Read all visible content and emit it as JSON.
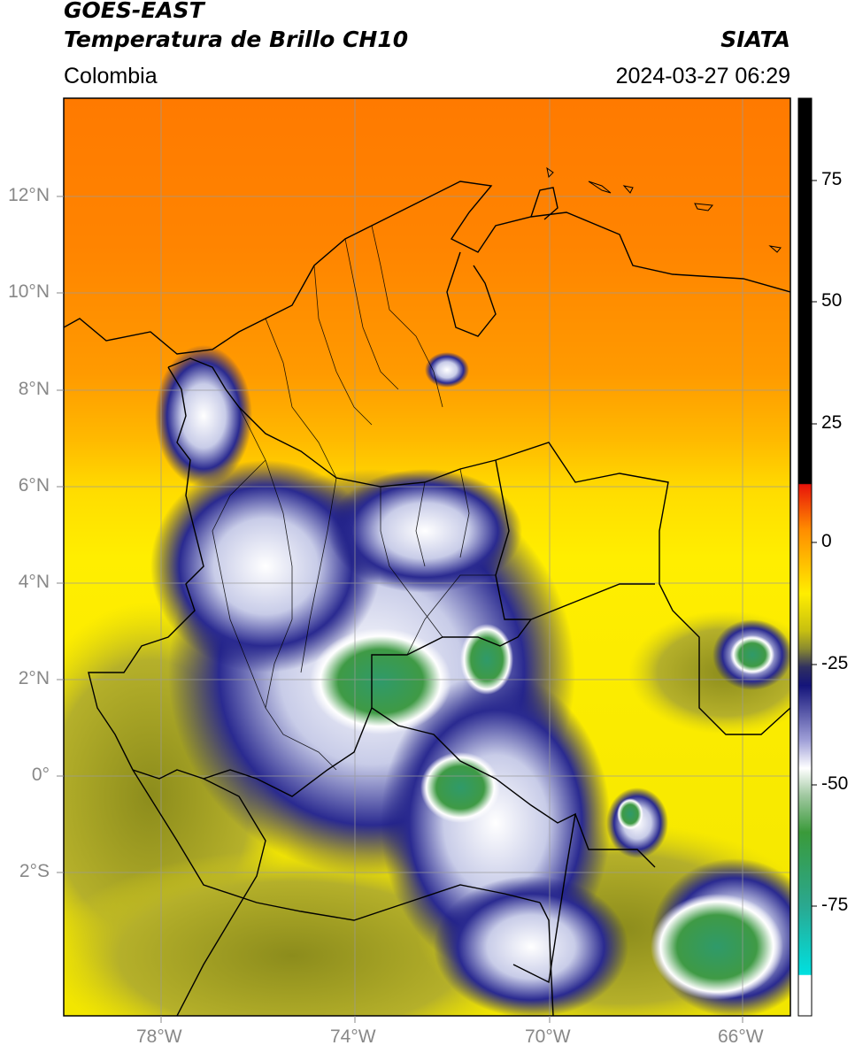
{
  "header": {
    "title_line1": "GOES-EAST",
    "title_line2": "Temperatura de Brillo CH10",
    "region": "Colombia",
    "source": "SIATA",
    "datetime": "2024-03-27 06:29"
  },
  "map": {
    "lat_labels": [
      "12°N",
      "10°N",
      "8°N",
      "6°N",
      "4°N",
      "2°N",
      "0°",
      "2°S"
    ],
    "lon_labels": [
      "78°W",
      "74°W",
      "70°W",
      "66°W"
    ],
    "lon_range": [
      -80,
      -65
    ],
    "lat_range": [
      -5,
      14
    ]
  },
  "colorbar": {
    "ticks": [
      "75",
      "50",
      "25",
      "0",
      "-25",
      "-50",
      "-75"
    ],
    "range": [
      -95,
      90
    ],
    "colors": {
      "black": "#000000",
      "red": "#e8140a",
      "orange": "#ff8c00",
      "yellow": "#ffee00",
      "olive": "#9a9a20",
      "navy": "#14147a",
      "white": "#ffffff",
      "green": "#3a9a3a",
      "teal": "#2aa890",
      "cyan": "#00e0e0"
    }
  }
}
